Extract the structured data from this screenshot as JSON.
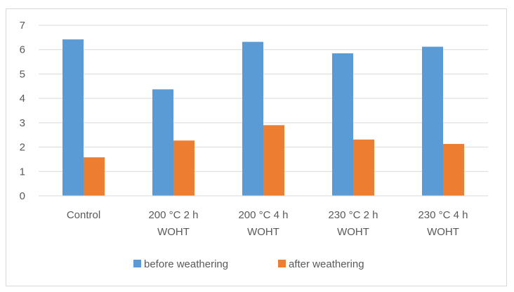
{
  "chart_data": {
    "type": "bar",
    "categories": [
      [
        "Control"
      ],
      [
        "200 °C 2 h",
        "WOHT"
      ],
      [
        "200 °C 4 h",
        "WOHT"
      ],
      [
        "230 °C 2 h",
        "WOHT"
      ],
      [
        "230 °C 4 h",
        "WOHT"
      ]
    ],
    "series": [
      {
        "name": "before weathering",
        "color": "#5b9bd5",
        "values": [
          6.42,
          4.37,
          6.32,
          5.85,
          6.12
        ]
      },
      {
        "name": "after weathering",
        "color": "#ed7d31",
        "values": [
          1.58,
          2.27,
          2.9,
          2.31,
          2.13
        ]
      }
    ],
    "yticks": [
      "0",
      "1",
      "2",
      "3",
      "4",
      "5",
      "6",
      "7"
    ],
    "ylim": [
      0,
      7
    ],
    "grid": true,
    "legend_position": "bottom",
    "title": "",
    "xlabel": "",
    "ylabel": ""
  }
}
